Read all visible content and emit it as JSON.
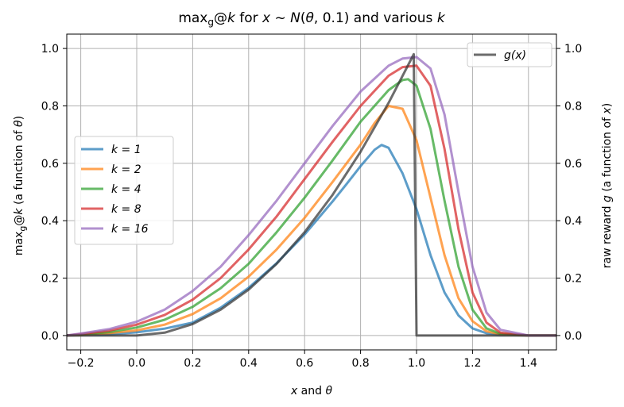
{
  "chart_data": {
    "type": "line",
    "title": "max_g@k for x ~ N(θ, 0.1) and various k",
    "xlabel": "x and θ",
    "ylabel": "max_g@k (a function of θ)",
    "ylabel_right": "raw reward g (a function of x)",
    "xlim": [
      -0.25,
      1.5
    ],
    "ylim": [
      -0.05,
      1.05
    ],
    "ylim_right": [
      -0.05,
      1.05
    ],
    "xticks": [
      "−0.2",
      "0.0",
      "0.2",
      "0.4",
      "0.6",
      "0.8",
      "1.0",
      "1.2",
      "1.4"
    ],
    "yticks": [
      "0.0",
      "0.2",
      "0.4",
      "0.6",
      "0.8",
      "1.0"
    ],
    "grid": true,
    "series": [
      {
        "name": "k = 1",
        "color": "#1f77b4",
        "x": [
          -0.25,
          -0.2,
          -0.1,
          0.0,
          0.1,
          0.2,
          0.3,
          0.4,
          0.5,
          0.6,
          0.7,
          0.75,
          0.8,
          0.85,
          0.875,
          0.9,
          0.95,
          1.0,
          1.05,
          1.1,
          1.15,
          1.2,
          1.25,
          1.3,
          1.4,
          1.5
        ],
        "y": [
          0,
          0.001,
          0.004,
          0.011,
          0.024,
          0.045,
          0.097,
          0.166,
          0.252,
          0.352,
          0.467,
          0.528,
          0.59,
          0.647,
          0.664,
          0.654,
          0.565,
          0.44,
          0.28,
          0.15,
          0.07,
          0.025,
          0.008,
          0.002,
          0,
          0
        ]
      },
      {
        "name": "k = 2",
        "color": "#ff7f0e",
        "x": [
          -0.25,
          -0.2,
          -0.1,
          0.0,
          0.1,
          0.2,
          0.3,
          0.4,
          0.5,
          0.6,
          0.7,
          0.8,
          0.85,
          0.9,
          0.95,
          1.0,
          1.05,
          1.1,
          1.15,
          1.2,
          1.25,
          1.3,
          1.4,
          1.5
        ],
        "y": [
          0,
          0.002,
          0.008,
          0.018,
          0.038,
          0.075,
          0.13,
          0.205,
          0.3,
          0.41,
          0.535,
          0.665,
          0.74,
          0.8,
          0.79,
          0.68,
          0.48,
          0.28,
          0.13,
          0.05,
          0.015,
          0.004,
          0,
          0
        ]
      },
      {
        "name": "k = 4",
        "color": "#2ca02c",
        "x": [
          -0.25,
          -0.2,
          -0.1,
          0.0,
          0.1,
          0.2,
          0.3,
          0.4,
          0.5,
          0.6,
          0.7,
          0.8,
          0.9,
          0.95,
          0.97,
          1.0,
          1.05,
          1.1,
          1.15,
          1.2,
          1.25,
          1.3,
          1.4,
          1.5
        ],
        "y": [
          0,
          0.003,
          0.012,
          0.028,
          0.055,
          0.1,
          0.165,
          0.25,
          0.36,
          0.48,
          0.61,
          0.745,
          0.855,
          0.89,
          0.893,
          0.87,
          0.72,
          0.47,
          0.24,
          0.09,
          0.025,
          0.006,
          0,
          0
        ]
      },
      {
        "name": "k = 8",
        "color": "#d62728",
        "x": [
          -0.25,
          -0.2,
          -0.1,
          0.0,
          0.1,
          0.2,
          0.3,
          0.4,
          0.5,
          0.6,
          0.7,
          0.8,
          0.9,
          0.95,
          1.0,
          1.05,
          1.1,
          1.15,
          1.2,
          1.25,
          1.3,
          1.4,
          1.5
        ],
        "y": [
          0,
          0.005,
          0.017,
          0.038,
          0.072,
          0.125,
          0.2,
          0.3,
          0.415,
          0.545,
          0.675,
          0.8,
          0.905,
          0.935,
          0.94,
          0.87,
          0.65,
          0.37,
          0.15,
          0.045,
          0.01,
          0,
          0
        ]
      },
      {
        "name": "k = 16",
        "color": "#9467bd",
        "x": [
          -0.25,
          -0.2,
          -0.1,
          0.0,
          0.1,
          0.2,
          0.3,
          0.4,
          0.5,
          0.6,
          0.7,
          0.8,
          0.9,
          0.95,
          1.0,
          1.05,
          1.1,
          1.15,
          1.2,
          1.25,
          1.3,
          1.4,
          1.5
        ],
        "y": [
          0,
          0.007,
          0.022,
          0.048,
          0.09,
          0.155,
          0.24,
          0.35,
          0.47,
          0.6,
          0.73,
          0.85,
          0.94,
          0.965,
          0.97,
          0.93,
          0.77,
          0.5,
          0.24,
          0.08,
          0.02,
          0,
          0
        ]
      },
      {
        "name": "g(x)",
        "color": "#333333",
        "x": [
          -0.25,
          0.0,
          0.1,
          0.2,
          0.3,
          0.4,
          0.5,
          0.6,
          0.7,
          0.8,
          0.9,
          0.99,
          0.99,
          1.0,
          1.5
        ],
        "y": [
          0,
          0,
          0.01,
          0.04,
          0.09,
          0.16,
          0.25,
          0.36,
          0.49,
          0.64,
          0.81,
          0.98,
          0.98,
          0,
          0
        ]
      }
    ],
    "legends": [
      {
        "position": "center-left",
        "entries": [
          "k = 1",
          "k = 2",
          "k = 4",
          "k = 8",
          "k = 16"
        ]
      },
      {
        "position": "top-right",
        "entries": [
          "g(x)"
        ]
      }
    ]
  }
}
